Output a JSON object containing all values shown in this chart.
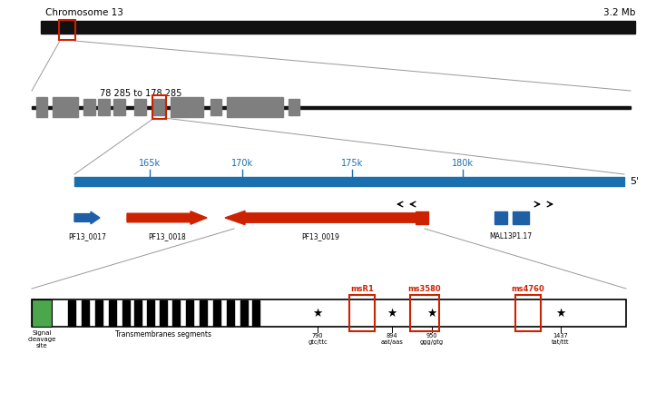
{
  "fig_width": 7.23,
  "fig_height": 4.54,
  "bg_color": "#ffffff",
  "chr_label": "Chromosome 13",
  "chr_size_label": "3.2 Mb",
  "region_label": "78 285 to 178 285",
  "prime5_label": "5'",
  "gene_labels": [
    "PF13_0017",
    "PF13_0018",
    "PF13_0019",
    "MAL13P1.17"
  ],
  "kb_ticks": [
    "165k",
    "170k",
    "175k",
    "180k"
  ],
  "ms_labels": [
    "msR1",
    "ms3580",
    "ms4760"
  ],
  "codon_790": "790\ngtc/ttc",
  "codon_894": "894\naat/aas",
  "codon_950": "950\nggg/gtg",
  "codon_1437": "1437\ntat/ttt",
  "red_color": "#cc2200",
  "blue_gene_color": "#1f5fa6",
  "blue_line_color": "#1a6faf",
  "gray_color": "#7f7f7f",
  "green_color": "#4ca64c",
  "black_color": "#111111",
  "zoom_line_color": "#999999"
}
